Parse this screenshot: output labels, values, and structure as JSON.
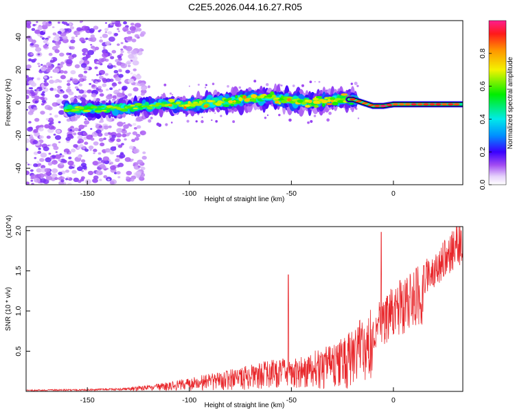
{
  "title": "C2E5.2026.044.16.27.R05",
  "chart_data": [
    {
      "type": "heatmap",
      "name": "spectrogram",
      "xlabel": "Height of straight line (km)",
      "ylabel": "Frequency (Hz)",
      "xlim": [
        -180,
        34
      ],
      "ylim": [
        -50,
        50
      ],
      "xticks": [
        -150,
        -100,
        -50,
        0
      ],
      "yticks": [
        -40,
        -20,
        0,
        20,
        40
      ],
      "colorbar": {
        "label": "Normalized spectral amplitude",
        "range": [
          0,
          1
        ],
        "ticks": [
          "0.0",
          "0.2",
          "0.4",
          "0.6",
          "0.8"
        ]
      },
      "ridge_x": [
        -155,
        -140,
        -130,
        -120,
        -110,
        -100,
        -90,
        -80,
        -70,
        -60,
        -50,
        -40,
        -30,
        -20,
        -15,
        -10,
        -5,
        0,
        10,
        20,
        30,
        34
      ],
      "ridge_y": [
        -4,
        -4,
        -3,
        -2,
        -1,
        -2,
        0,
        1,
        2,
        3,
        1,
        0,
        2,
        2,
        0,
        -2,
        -2,
        -1,
        -1,
        -1,
        -1,
        -1
      ]
    },
    {
      "type": "line",
      "name": "snr",
      "xlabel": "Height of straight line (km)",
      "ylabel": "SNR (10 * v/v)",
      "y_multiplier": "(x10^4)",
      "xlim": [
        -180,
        34
      ],
      "ylim": [
        0,
        2.05
      ],
      "xticks": [
        -150,
        -100,
        -50,
        0
      ],
      "yticks": [
        "0.5",
        "1.0",
        "1.5",
        "2.0"
      ],
      "color": "#e8262a",
      "envelope_x": [
        -180,
        -150,
        -135,
        -125,
        -115,
        -105,
        -100,
        -90,
        -80,
        -70,
        -60,
        -50,
        -45,
        -40,
        -35,
        -30,
        -25,
        -20,
        -15,
        -10,
        -5,
        0,
        5,
        10,
        15,
        20,
        25,
        30,
        34
      ],
      "envelope_y": [
        0.02,
        0.03,
        0.04,
        0.06,
        0.09,
        0.13,
        0.16,
        0.2,
        0.25,
        0.3,
        0.36,
        0.38,
        0.4,
        0.45,
        0.5,
        0.55,
        0.6,
        0.7,
        0.85,
        0.95,
        1.05,
        1.2,
        1.3,
        1.4,
        1.5,
        1.6,
        1.75,
        1.9,
        1.95
      ],
      "spikes": [
        {
          "x": -51.5,
          "y": 1.45
        },
        {
          "x": -6,
          "y": 1.98
        }
      ]
    }
  ]
}
